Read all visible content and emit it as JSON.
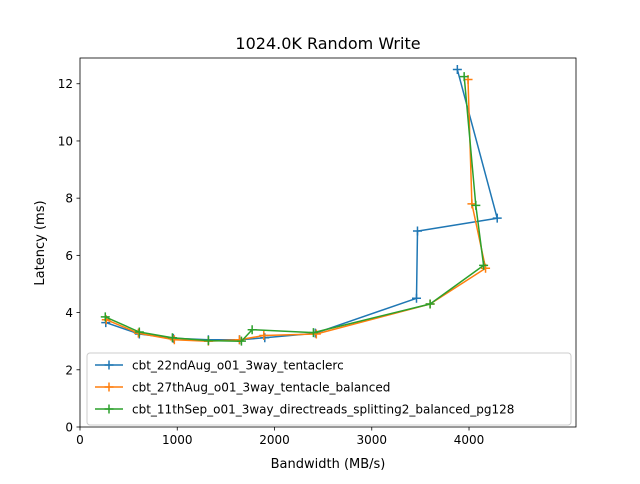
{
  "chart_data": {
    "type": "line",
    "title": "1024.0K  Random Write",
    "xlabel": "Bandwidth (MB/s)",
    "ylabel": "Latency (ms)",
    "xlim": [
      0,
      5100
    ],
    "ylim": [
      0,
      12.9
    ],
    "xticks": [
      0,
      1000,
      2000,
      3000,
      4000
    ],
    "xtick_labels": [
      "0",
      "1000",
      "2000",
      "3000",
      "4000"
    ],
    "yticks": [
      0,
      2,
      4,
      6,
      8,
      10,
      12
    ],
    "ytick_labels": [
      "0",
      "2",
      "4",
      "6",
      "8",
      "10",
      "12"
    ],
    "grid": false,
    "legend_position": "lower-left",
    "marker": "+",
    "series": [
      {
        "name": "cbt_22ndAug_o01_3way_tentaclerc",
        "color": "#1f77b4",
        "x": [
          265,
          610,
          960,
          1320,
          1640,
          1900,
          2420,
          3460,
          3470,
          4290,
          3880
        ],
        "y": [
          3.65,
          3.25,
          3.1,
          3.05,
          3.05,
          3.12,
          3.28,
          4.5,
          6.85,
          7.3,
          12.5
        ]
      },
      {
        "name": "cbt_27thAug_o01_3way_tentacle_balanced",
        "color": "#ff7f0e",
        "x": [
          270,
          600,
          970,
          1320,
          1640,
          1890,
          2430,
          3600,
          4170,
          4030,
          3990
        ],
        "y": [
          3.75,
          3.28,
          3.05,
          3.0,
          3.05,
          3.2,
          3.25,
          4.3,
          5.55,
          7.8,
          12.15
        ]
      },
      {
        "name": "cbt_11thSep_o01_3way_directreads_splitting2_balanced_pg128",
        "color": "#2ca02c",
        "x": [
          260,
          610,
          950,
          1320,
          1660,
          1770,
          2400,
          3600,
          4150,
          4070,
          3950
        ],
        "y": [
          3.85,
          3.32,
          3.12,
          3.02,
          3.0,
          3.4,
          3.3,
          4.3,
          5.65,
          7.75,
          12.25
        ]
      }
    ]
  }
}
